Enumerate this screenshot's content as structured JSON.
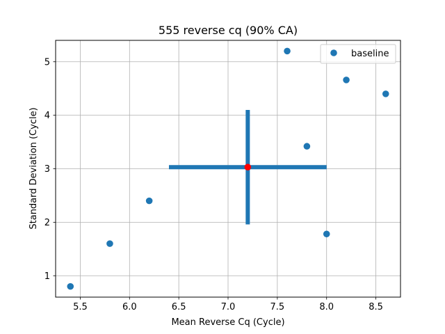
{
  "chart_data": {
    "type": "scatter",
    "title": "555 reverse cq (90% CA)",
    "xlabel": "Mean Reverse Cq (Cycle)",
    "ylabel": "Standard Deviation (Cycle)",
    "xlim": [
      5.25,
      8.75
    ],
    "ylim": [
      0.6,
      5.4
    ],
    "xticks": [
      5.5,
      6.0,
      6.5,
      7.0,
      7.5,
      8.0,
      8.5
    ],
    "xtick_labels": [
      "5.5",
      "6.0",
      "6.5",
      "7.0",
      "7.5",
      "8.0",
      "8.5"
    ],
    "yticks": [
      1,
      2,
      3,
      4,
      5
    ],
    "ytick_labels": [
      "1",
      "2",
      "3",
      "4",
      "5"
    ],
    "grid": true,
    "legend_position": "top-right",
    "series": [
      {
        "name": "baseline",
        "color": "#1f77b4",
        "points": [
          {
            "x": 5.4,
            "y": 0.8
          },
          {
            "x": 5.8,
            "y": 1.6
          },
          {
            "x": 6.2,
            "y": 2.4
          },
          {
            "x": 7.6,
            "y": 5.2
          },
          {
            "x": 7.8,
            "y": 3.42
          },
          {
            "x": 8.0,
            "y": 1.78
          },
          {
            "x": 8.2,
            "y": 4.66
          },
          {
            "x": 8.6,
            "y": 4.4
          }
        ]
      }
    ],
    "center_point": {
      "x": 7.2,
      "y": 3.03,
      "color": "#ff0000"
    },
    "error_bars": {
      "color": "#1f77b4",
      "x_range": [
        6.4,
        8.0
      ],
      "y_range": [
        1.96,
        4.1
      ]
    }
  }
}
